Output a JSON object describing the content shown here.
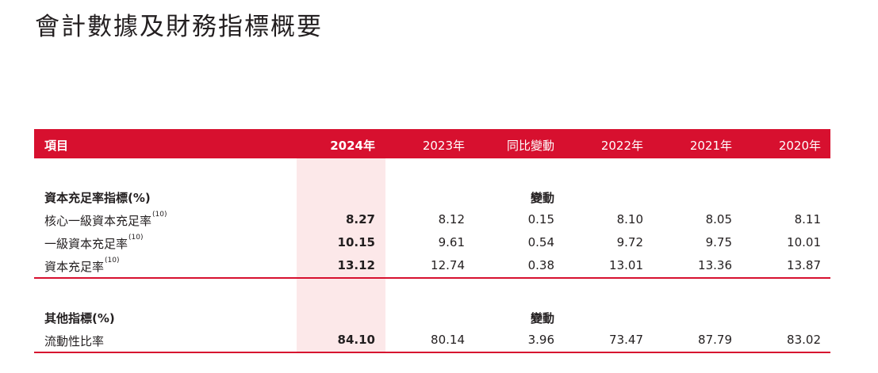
{
  "title": "會計數據及財務指標概要",
  "header": {
    "item": "項目",
    "y2024": "2024年",
    "y2023": "2023年",
    "change": "同比變動",
    "y2022": "2022年",
    "y2021": "2021年",
    "y2020": "2020年"
  },
  "section1": {
    "title": "資本充足率指標(%)",
    "change_label": "變動",
    "rows": [
      {
        "label": "核心一級資本充足率",
        "note": "(10)",
        "v2024": "8.27",
        "v2023": "8.12",
        "change": "0.15",
        "v2022": "8.10",
        "v2021": "8.05",
        "v2020": "8.11"
      },
      {
        "label": "一級資本充足率",
        "note": "(10)",
        "v2024": "10.15",
        "v2023": "9.61",
        "change": "0.54",
        "v2022": "9.72",
        "v2021": "9.75",
        "v2020": "10.01"
      },
      {
        "label": "資本充足率",
        "note": "(10)",
        "v2024": "13.12",
        "v2023": "12.74",
        "change": "0.38",
        "v2022": "13.01",
        "v2021": "13.36",
        "v2020": "13.87"
      }
    ]
  },
  "section2": {
    "title": "其他指標(%)",
    "change_label": "變動",
    "rows": [
      {
        "label": "流動性比率",
        "v2024": "84.10",
        "v2023": "80.14",
        "change": "3.96",
        "v2022": "73.47",
        "v2021": "87.79",
        "v2020": "83.02"
      }
    ]
  },
  "colors": {
    "accent": "#d7102f",
    "highlight": "#fce8e9",
    "text": "#231f20"
  }
}
